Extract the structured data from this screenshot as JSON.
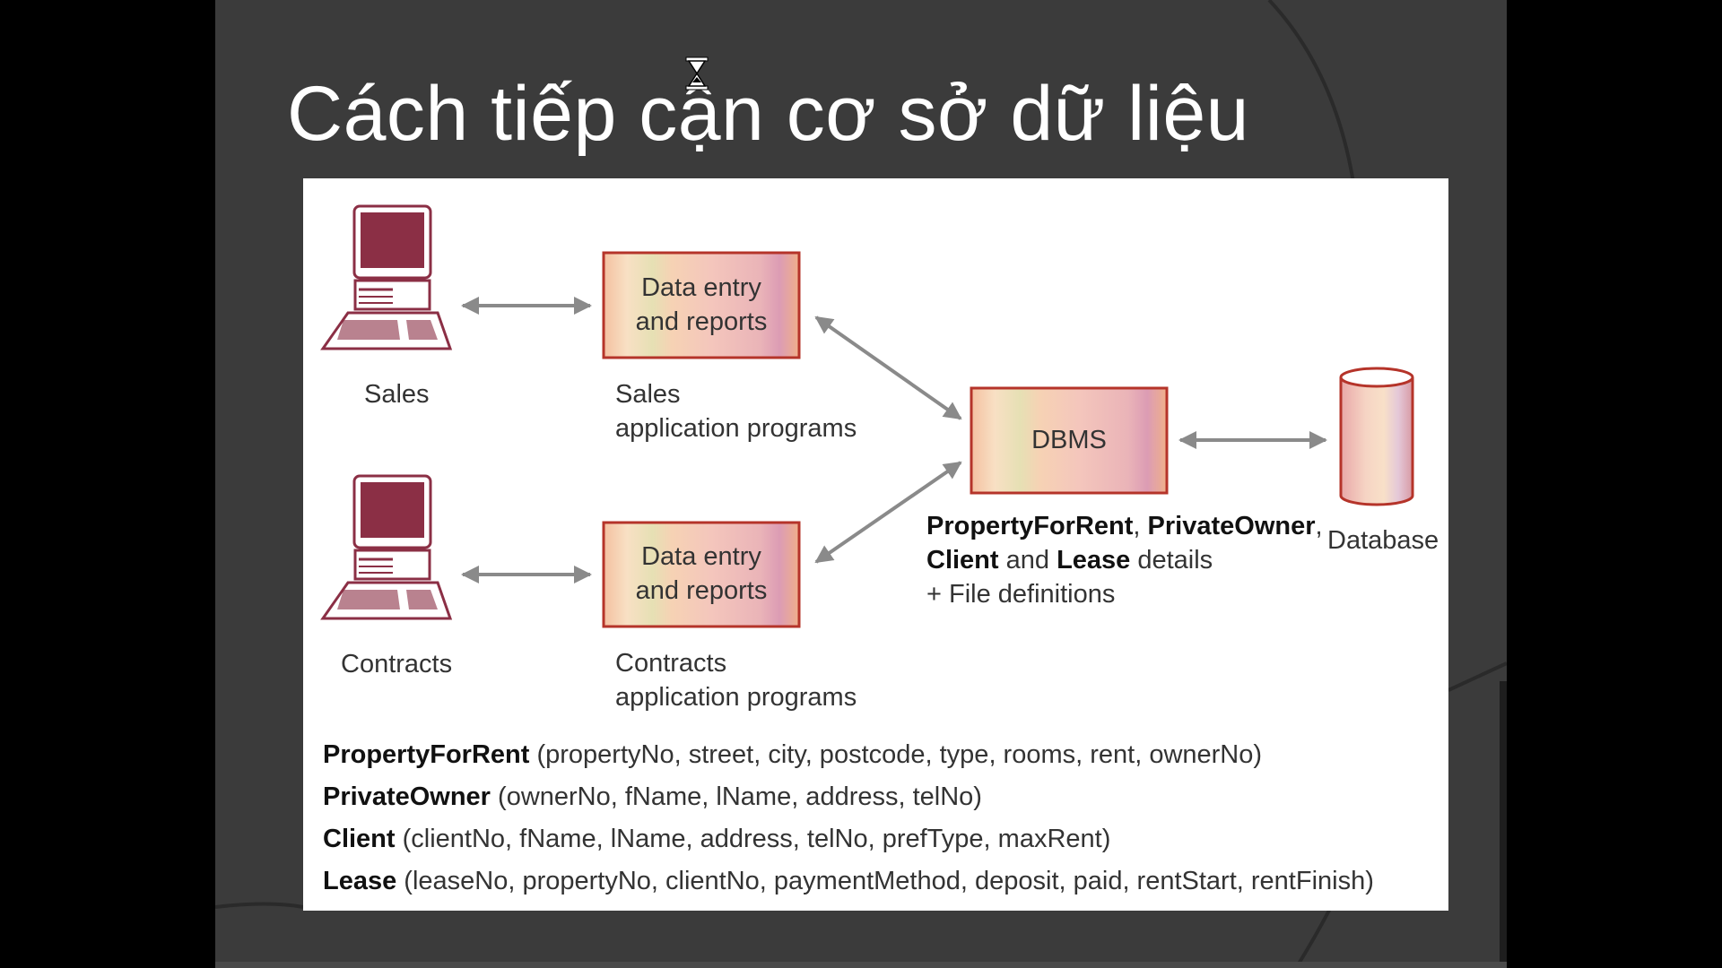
{
  "slide": {
    "title": "Cách tiếp cận cơ sở dữ liệu",
    "cursor_icon": "hourglass-cursor-icon"
  },
  "diagram": {
    "users": [
      {
        "label": "Sales",
        "icon": "computer-terminal-icon"
      },
      {
        "label": "Contracts",
        "icon": "computer-terminal-icon"
      }
    ],
    "programs": [
      {
        "box_line1": "Data entry",
        "box_line2": "and reports",
        "caption_line1": "Sales",
        "caption_line2": "application programs"
      },
      {
        "box_line1": "Data entry",
        "box_line2": "and reports",
        "caption_line1": "Contracts",
        "caption_line2": "application programs"
      }
    ],
    "dbms": {
      "label": "DBMS"
    },
    "database": {
      "label": "Database",
      "icon": "database-cylinder-icon"
    },
    "details": {
      "entity1": "PropertyForRent",
      "sep1": ", ",
      "entity2": "PrivateOwner",
      "sep2": ",",
      "entity3": "Client",
      "and_text": " and ",
      "entity4": "Lease",
      "details_text": " details",
      "line3": "+ File definitions"
    },
    "schema": [
      {
        "name": "PropertyForRent",
        "attrs": " (propertyNo, street, city, postcode, type, rooms, rent, ownerNo)"
      },
      {
        "name": "PrivateOwner",
        "attrs": " (ownerNo, fName, lName, address, telNo)"
      },
      {
        "name": "Client",
        "attrs": " (clientNo, fName, lName, address, telNo, prefType, maxRent)"
      },
      {
        "name": "Lease",
        "attrs": " (leaseNo, propertyNo, clientNo, paymentMethod, deposit, paid, rentStart, rentFinish)"
      }
    ]
  },
  "colors": {
    "background": "#3b3b3b",
    "panel": "#ffffff",
    "box_border": "#b5342a",
    "monitor": "#8b2f45",
    "arrow": "#8a8a8a"
  }
}
